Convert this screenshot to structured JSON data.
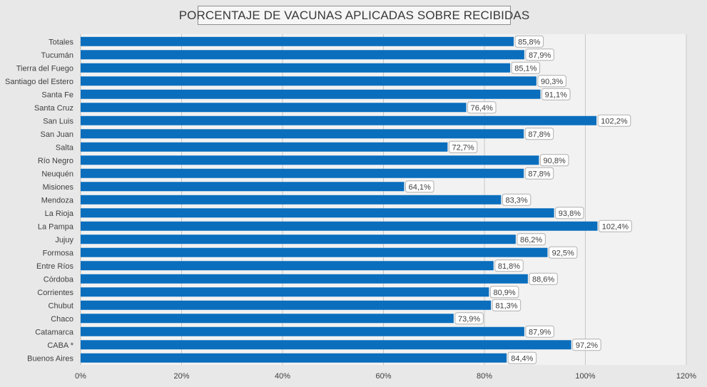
{
  "chart_data": {
    "type": "bar",
    "orientation": "horizontal",
    "title": "PORCENTAJE DE VACUNAS APLICADAS SOBRE RECIBIDAS",
    "xlabel": "",
    "ylabel": "",
    "xlim": [
      0,
      120
    ],
    "x_ticks": [
      "0%",
      "20%",
      "40%",
      "60%",
      "80%",
      "100%",
      "120%"
    ],
    "grid": true,
    "legend": "none",
    "bar_color": "#0a6ebd",
    "categories": [
      "Totales",
      "Tucumán",
      "Tierra del Fuego",
      "Santiago del Estero",
      "Santa Fe",
      "Santa Cruz",
      "San Luis",
      "San Juan",
      "Salta",
      "Río Negro",
      "Neuquén",
      "Misiones",
      "Mendoza",
      "La Rioja",
      "La Pampa",
      "Jujuy",
      "Formosa",
      "Entre Ríos",
      "Córdoba",
      "Corrientes",
      "Chubut",
      "Chaco",
      "Catamarca",
      "CABA *",
      "Buenos Aires"
    ],
    "values": [
      85.8,
      87.9,
      85.1,
      90.3,
      91.1,
      76.4,
      102.2,
      87.8,
      72.7,
      90.8,
      87.8,
      64.1,
      83.3,
      93.8,
      102.4,
      86.2,
      92.5,
      81.8,
      88.6,
      80.9,
      81.3,
      73.9,
      87.9,
      97.2,
      84.4
    ],
    "data_labels": [
      "85,8%",
      "87,9%",
      "85,1%",
      "90,3%",
      "91,1%",
      "76,4%",
      "102,2%",
      "87,8%",
      "72,7%",
      "90,8%",
      "87,8%",
      "64,1%",
      "83,3%",
      "93,8%",
      "102,4%",
      "86,2%",
      "92,5%",
      "81,8%",
      "88,6%",
      "80,9%",
      "81,3%",
      "73,9%",
      "87,9%",
      "97,2%",
      "84,4%"
    ]
  }
}
